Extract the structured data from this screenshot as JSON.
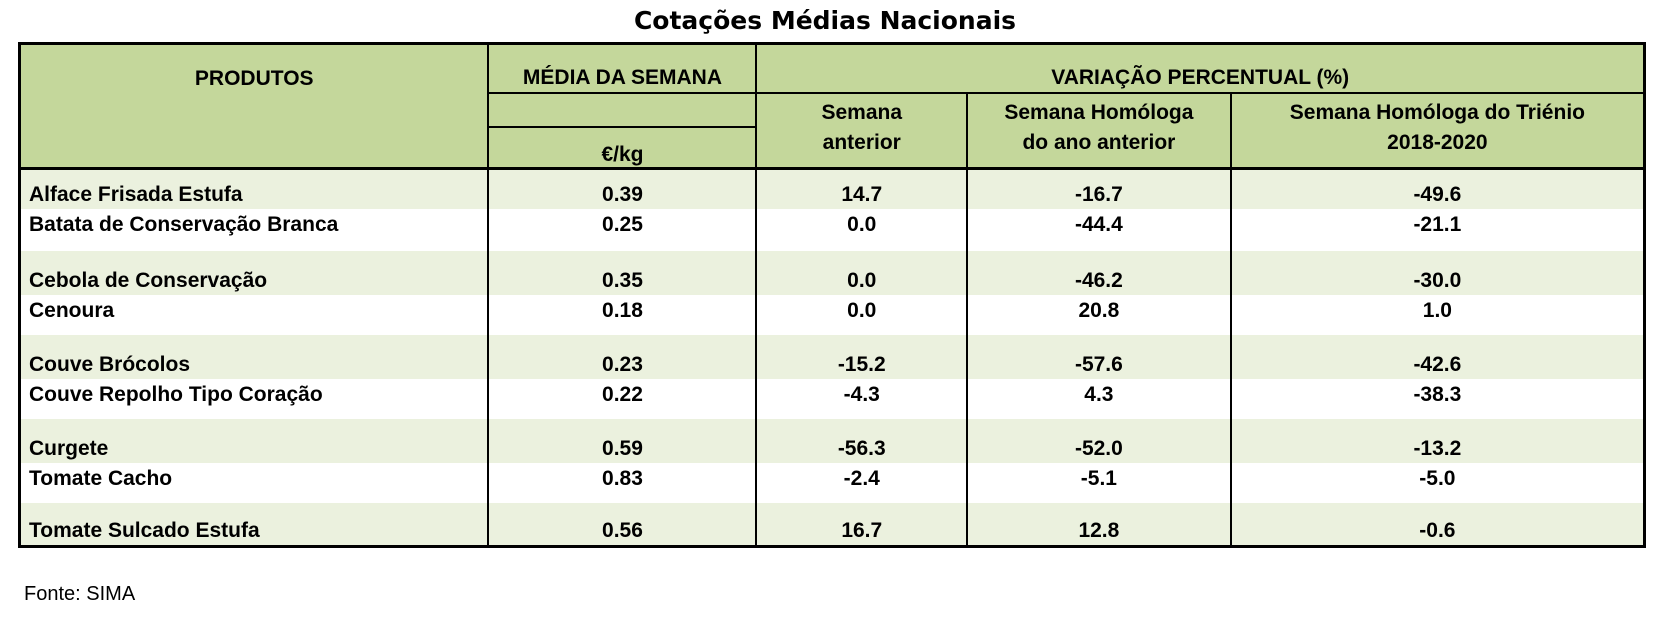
{
  "title": "Cotações Médias Nacionais",
  "header": {
    "produtos": "PRODUTOS",
    "media_semana": "MÉDIA DA SEMANA",
    "unidade": "€/kg",
    "variacao": "VARIAÇÃO PERCENTUAL (%)",
    "semana_anterior_1": "Semana",
    "semana_anterior_2": "anterior",
    "homologa_1": "Semana Homóloga",
    "homologa_2": "do ano anterior",
    "trienio_1": "Semana Homóloga do Triénio",
    "trienio_2": "2018-2020"
  },
  "rows": [
    {
      "produto": "Alface Frisada Estufa",
      "media": "0.39",
      "sem_ant": "14.7",
      "homologa": "-16.7",
      "trienio": "-49.6"
    },
    {
      "produto": "Batata de Conservação Branca",
      "media": "0.25",
      "sem_ant": "0.0",
      "homologa": "-44.4",
      "trienio": "-21.1"
    },
    {
      "produto": "Cebola de Conservação",
      "media": "0.35",
      "sem_ant": "0.0",
      "homologa": "-46.2",
      "trienio": "-30.0"
    },
    {
      "produto": "Cenoura",
      "media": "0.18",
      "sem_ant": "0.0",
      "homologa": "20.8",
      "trienio": "1.0"
    },
    {
      "produto": "Couve Brócolos",
      "media": "0.23",
      "sem_ant": "-15.2",
      "homologa": "-57.6",
      "trienio": "-42.6"
    },
    {
      "produto": "Couve Repolho Tipo Coração",
      "media": "0.22",
      "sem_ant": "-4.3",
      "homologa": "4.3",
      "trienio": "-38.3"
    },
    {
      "produto": "Curgete",
      "media": "0.59",
      "sem_ant": "-56.3",
      "homologa": "-52.0",
      "trienio": "-13.2"
    },
    {
      "produto": "Tomate Cacho",
      "media": "0.83",
      "sem_ant": "-2.4",
      "homologa": "-5.1",
      "trienio": "-5.0"
    },
    {
      "produto": "Tomate Sulcado Estufa",
      "media": "0.56",
      "sem_ant": "16.7",
      "homologa": "12.8",
      "trienio": "-0.6"
    }
  ],
  "fonte": "Fonte: SIMA",
  "colors": {
    "header_bg": "#c4d79b",
    "row_shade": "#ebf1de"
  }
}
